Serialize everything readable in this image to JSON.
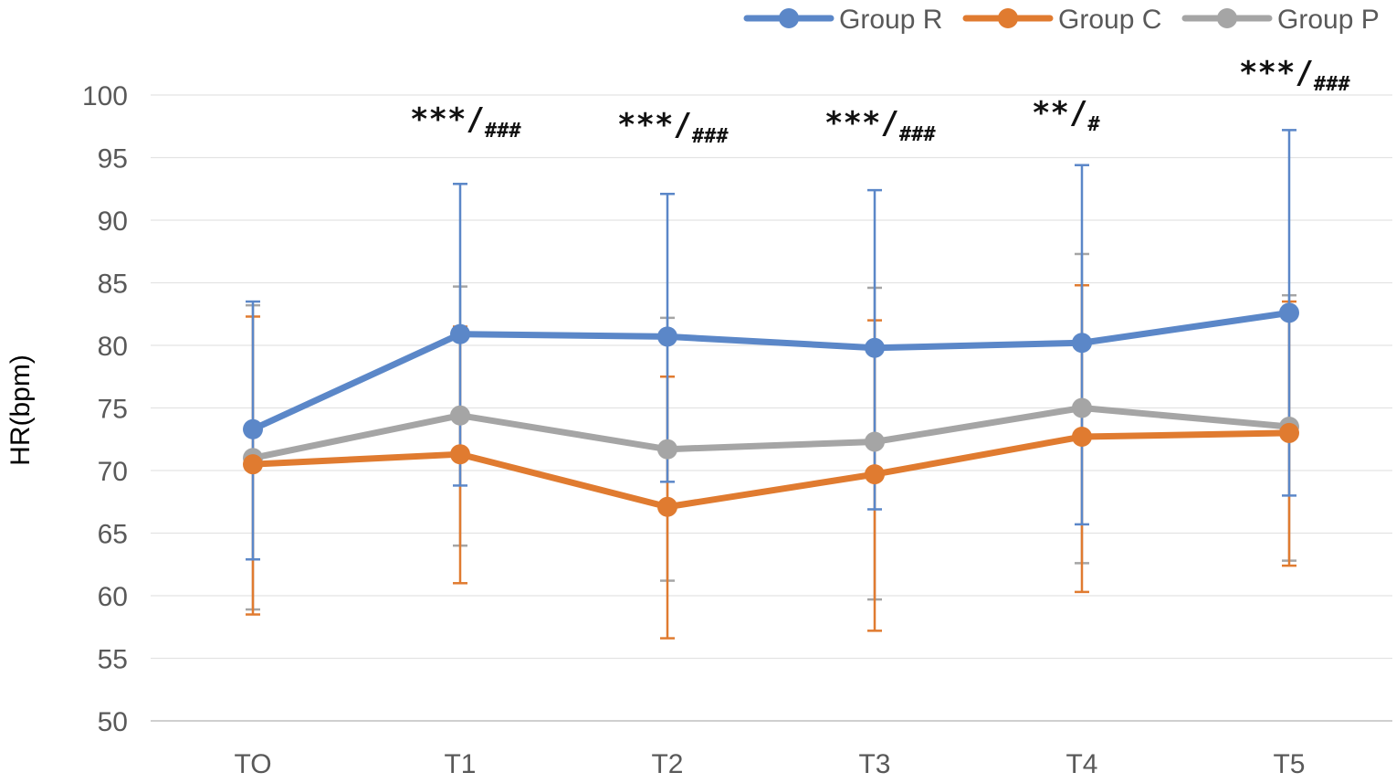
{
  "chart_data": {
    "type": "line",
    "title": "",
    "xlabel": "",
    "ylabel": "HR(bpm)",
    "ylim": [
      50,
      100
    ],
    "yticks": [
      50,
      55,
      60,
      65,
      70,
      75,
      80,
      85,
      90,
      95,
      100
    ],
    "grid": true,
    "legend_position": "top-right",
    "categories": [
      "TO",
      "T1",
      "T2",
      "T3",
      "T4",
      "T5"
    ],
    "series": [
      {
        "name": "Group R",
        "color": "#5B87C8",
        "values": [
          73.3,
          80.9,
          80.7,
          79.8,
          80.2,
          82.6
        ],
        "upper": [
          83.5,
          92.9,
          92.1,
          92.4,
          94.4,
          97.2
        ],
        "lower": [
          62.9,
          68.8,
          69.1,
          66.9,
          65.7,
          68.0
        ]
      },
      {
        "name": "Group C",
        "color": "#E07B30",
        "values": [
          70.5,
          71.3,
          67.1,
          69.7,
          72.7,
          73.0
        ],
        "upper": [
          82.3,
          81.5,
          77.5,
          82.0,
          84.8,
          83.5
        ],
        "lower": [
          58.5,
          61.0,
          56.6,
          57.2,
          60.3,
          62.4
        ]
      },
      {
        "name": "Group P",
        "color": "#A5A5A5",
        "values": [
          71.0,
          74.4,
          71.7,
          72.3,
          75.0,
          73.5
        ],
        "upper": [
          83.2,
          84.7,
          82.2,
          84.6,
          87.3,
          84.0
        ],
        "lower": [
          58.9,
          64.0,
          61.2,
          59.7,
          62.6,
          62.8
        ]
      }
    ],
    "annotations": [
      {
        "category": "T1",
        "main": "***/",
        "sub": "###"
      },
      {
        "category": "T2",
        "main": "***/",
        "sub": "###"
      },
      {
        "category": "T3",
        "main": "***/",
        "sub": "###"
      },
      {
        "category": "T4",
        "main": "**/",
        "sub": "#"
      },
      {
        "category": "T5",
        "main": "***/",
        "sub": "###"
      }
    ]
  }
}
